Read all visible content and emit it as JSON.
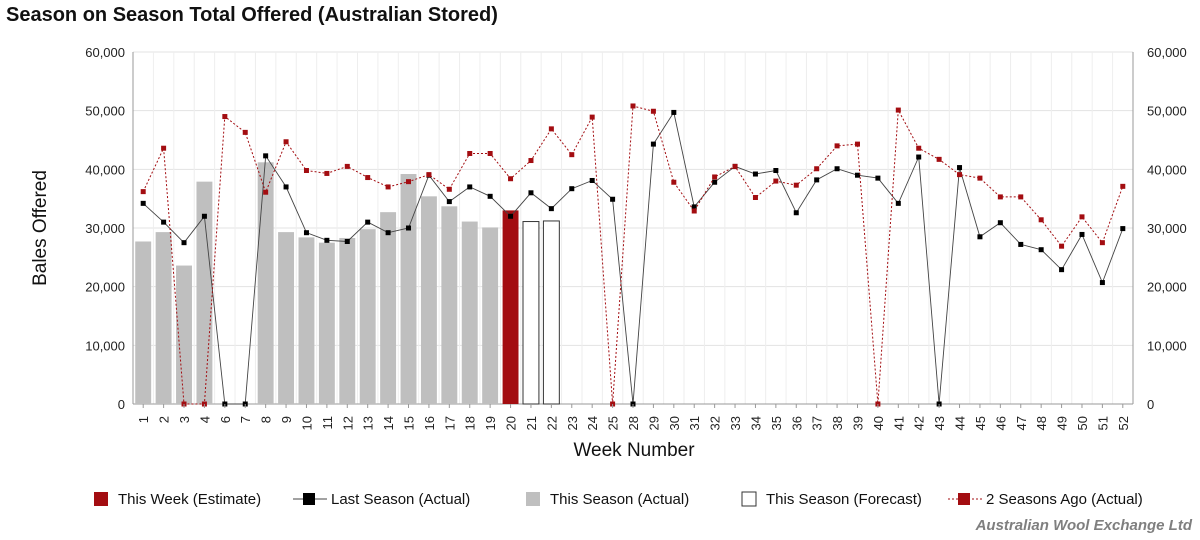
{
  "title": "Season on Season Total Offered (Australian Stored)",
  "credit": "Australian Wool Exchange Ltd",
  "colors": {
    "this_week": "#a30d11",
    "last_season": "#000000",
    "this_season_actual": "#bfbfbf",
    "forecast_fill": "#ffffff",
    "forecast_stroke": "#333333",
    "two_seasons_ago": "#a30d11"
  },
  "chart_data": {
    "type": "bar",
    "title": "Season on Season Total Offered (Australian Stored)",
    "xlabel": "Week Number",
    "ylabel": "Bales Offered",
    "ylim": [
      0,
      60000
    ],
    "y_ticks": [
      "0",
      "10,000",
      "20,000",
      "30,000",
      "40,000",
      "50,000",
      "60,000"
    ],
    "y_tick_values": [
      0,
      10000,
      20000,
      30000,
      40000,
      50000,
      60000
    ],
    "x": [
      "1",
      "2",
      "3",
      "4",
      "6",
      "7",
      "8",
      "9",
      "10",
      "11",
      "12",
      "13",
      "14",
      "15",
      "16",
      "17",
      "18",
      "19",
      "20",
      "21",
      "22",
      "23",
      "24",
      "25",
      "28",
      "29",
      "30",
      "31",
      "32",
      "33",
      "34",
      "35",
      "36",
      "37",
      "38",
      "39",
      "40",
      "41",
      "42",
      "43",
      "44",
      "45",
      "46",
      "47",
      "48",
      "49",
      "50",
      "51",
      "52"
    ],
    "legend_position": "bottom",
    "series": [
      {
        "name": "This Week (Estimate)",
        "kind": "bar",
        "values": [
          null,
          null,
          null,
          null,
          null,
          null,
          null,
          null,
          null,
          null,
          null,
          null,
          null,
          null,
          null,
          null,
          null,
          null,
          33000,
          null,
          null,
          null,
          null,
          null,
          null,
          null,
          null,
          null,
          null,
          null,
          null,
          null,
          null,
          null,
          null,
          null,
          null,
          null,
          null,
          null,
          null,
          null,
          null,
          null,
          null,
          null,
          null,
          null,
          null
        ]
      },
      {
        "name": "Last Season (Actual)",
        "kind": "line",
        "values": [
          34200,
          31000,
          27500,
          32000,
          0,
          0,
          42300,
          37000,
          29200,
          27900,
          27700,
          31000,
          29200,
          30000,
          39000,
          34500,
          37000,
          35400,
          32000,
          36000,
          33300,
          36700,
          38100,
          34900,
          0,
          44300,
          49700,
          33600,
          37800,
          40500,
          39200,
          39800,
          32600,
          38200,
          40100,
          39000,
          38500,
          34200,
          42100,
          0,
          40300,
          28500,
          30900,
          27200,
          26300,
          22900,
          28900,
          20700,
          29900
        ]
      },
      {
        "name": "This Season (Actual)",
        "kind": "bar",
        "values": [
          27700,
          29300,
          23600,
          37900,
          null,
          null,
          41200,
          29300,
          28400,
          27500,
          28300,
          29800,
          32700,
          39200,
          35400,
          33700,
          31100,
          30100,
          null,
          null,
          null,
          null,
          null,
          null,
          null,
          null,
          null,
          null,
          null,
          null,
          null,
          null,
          null,
          null,
          null,
          null,
          null,
          null,
          null,
          null,
          null,
          null,
          null,
          null,
          null,
          null,
          null,
          null,
          null
        ]
      },
      {
        "name": "This Season (Forecast)",
        "kind": "bar_outline",
        "values": [
          null,
          null,
          null,
          null,
          null,
          null,
          null,
          null,
          null,
          null,
          null,
          null,
          null,
          null,
          null,
          null,
          null,
          null,
          null,
          31100,
          31200,
          null,
          null,
          null,
          null,
          null,
          null,
          null,
          null,
          null,
          null,
          null,
          null,
          null,
          null,
          null,
          null,
          null,
          null,
          null,
          null,
          null,
          null,
          null,
          null,
          null,
          null,
          null,
          null
        ]
      },
      {
        "name": "2 Seasons Ago (Actual)",
        "kind": "dotted_line",
        "values": [
          36200,
          43600,
          0,
          0,
          49000,
          46300,
          36100,
          44700,
          39800,
          39300,
          40500,
          38600,
          37000,
          37900,
          39100,
          36600,
          42700,
          42700,
          38400,
          41500,
          46900,
          42500,
          48900,
          0,
          50800,
          49900,
          37800,
          32900,
          38700,
          40500,
          35200,
          38000,
          37300,
          40100,
          44000,
          44300,
          0,
          50100,
          43600,
          41700,
          39100,
          38500,
          35300,
          35300,
          31400,
          26900,
          31900,
          27500,
          37100
        ]
      }
    ]
  }
}
